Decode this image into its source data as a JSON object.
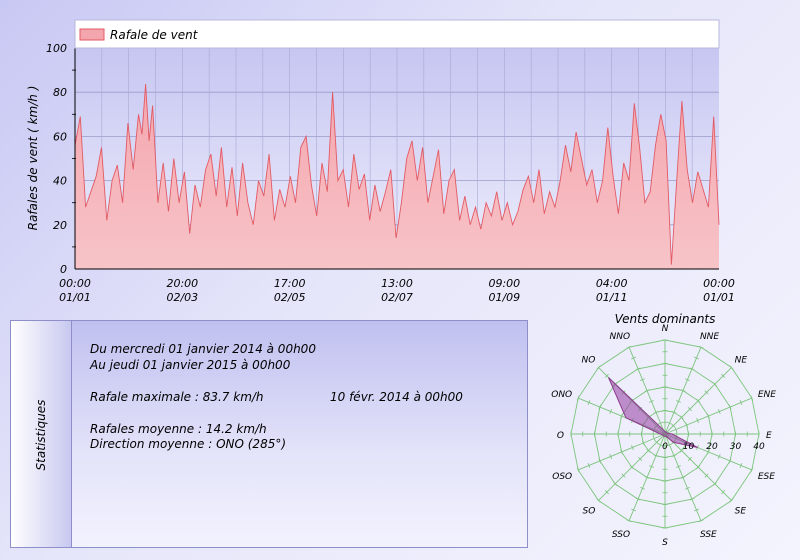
{
  "chart_data": [
    {
      "type": "area",
      "legend": "Rafale de vent",
      "ylabel": "Rafales de vent ( km/h )",
      "ylim": [
        0,
        100
      ],
      "yticks": [
        0,
        20,
        40,
        60,
        80,
        100
      ],
      "x_ticks": [
        {
          "time": "00:00",
          "date": "01/01"
        },
        {
          "time": "20:00",
          "date": "02/03"
        },
        {
          "time": "17:00",
          "date": "02/05"
        },
        {
          "time": "13:00",
          "date": "02/07"
        },
        {
          "time": "09:00",
          "date": "01/09"
        },
        {
          "time": "04:00",
          "date": "01/11"
        },
        {
          "time": "00:00",
          "date": "01/01"
        }
      ],
      "x_start": "2014-01-01 00:00",
      "x_end": "2015-01-01 00:00",
      "series": [
        {
          "name": "Rafale de vent",
          "color": "#f08080",
          "values": [
            {
              "x": "2014-01-01",
              "y": 56
            },
            {
              "x": "2014-01-04",
              "y": 69
            },
            {
              "x": "2014-01-07",
              "y": 28
            },
            {
              "x": "2014-01-10",
              "y": 35
            },
            {
              "x": "2014-01-13",
              "y": 42
            },
            {
              "x": "2014-01-16",
              "y": 55
            },
            {
              "x": "2014-01-19",
              "y": 22
            },
            {
              "x": "2014-01-22",
              "y": 40
            },
            {
              "x": "2014-01-25",
              "y": 47
            },
            {
              "x": "2014-01-28",
              "y": 30
            },
            {
              "x": "2014-01-31",
              "y": 66
            },
            {
              "x": "2014-02-03",
              "y": 45
            },
            {
              "x": "2014-02-06",
              "y": 70
            },
            {
              "x": "2014-02-08",
              "y": 61
            },
            {
              "x": "2014-02-10",
              "y": 83.7
            },
            {
              "x": "2014-02-12",
              "y": 58
            },
            {
              "x": "2014-02-14",
              "y": 74
            },
            {
              "x": "2014-02-17",
              "y": 30
            },
            {
              "x": "2014-02-20",
              "y": 48
            },
            {
              "x": "2014-02-23",
              "y": 26
            },
            {
              "x": "2014-02-26",
              "y": 50
            },
            {
              "x": "2014-03-01",
              "y": 30
            },
            {
              "x": "2014-03-04",
              "y": 44
            },
            {
              "x": "2014-03-07",
              "y": 16
            },
            {
              "x": "2014-03-10",
              "y": 38
            },
            {
              "x": "2014-03-13",
              "y": 28
            },
            {
              "x": "2014-03-16",
              "y": 45
            },
            {
              "x": "2014-03-19",
              "y": 52
            },
            {
              "x": "2014-03-22",
              "y": 33
            },
            {
              "x": "2014-03-25",
              "y": 55
            },
            {
              "x": "2014-03-28",
              "y": 28
            },
            {
              "x": "2014-03-31",
              "y": 46
            },
            {
              "x": "2014-04-03",
              "y": 24
            },
            {
              "x": "2014-04-06",
              "y": 48
            },
            {
              "x": "2014-04-09",
              "y": 30
            },
            {
              "x": "2014-04-12",
              "y": 20
            },
            {
              "x": "2014-04-15",
              "y": 40
            },
            {
              "x": "2014-04-18",
              "y": 33
            },
            {
              "x": "2014-04-21",
              "y": 52
            },
            {
              "x": "2014-04-24",
              "y": 22
            },
            {
              "x": "2014-04-27",
              "y": 36
            },
            {
              "x": "2014-04-30",
              "y": 28
            },
            {
              "x": "2014-05-03",
              "y": 42
            },
            {
              "x": "2014-05-06",
              "y": 30
            },
            {
              "x": "2014-05-09",
              "y": 55
            },
            {
              "x": "2014-05-12",
              "y": 60
            },
            {
              "x": "2014-05-15",
              "y": 38
            },
            {
              "x": "2014-05-18",
              "y": 24
            },
            {
              "x": "2014-05-21",
              "y": 48
            },
            {
              "x": "2014-05-24",
              "y": 35
            },
            {
              "x": "2014-05-27",
              "y": 80
            },
            {
              "x": "2014-05-30",
              "y": 40
            },
            {
              "x": "2014-06-02",
              "y": 45
            },
            {
              "x": "2014-06-05",
              "y": 28
            },
            {
              "x": "2014-06-08",
              "y": 52
            },
            {
              "x": "2014-06-11",
              "y": 36
            },
            {
              "x": "2014-06-14",
              "y": 43
            },
            {
              "x": "2014-06-17",
              "y": 22
            },
            {
              "x": "2014-06-20",
              "y": 38
            },
            {
              "x": "2014-06-23",
              "y": 26
            },
            {
              "x": "2014-06-26",
              "y": 35
            },
            {
              "x": "2014-06-29",
              "y": 45
            },
            {
              "x": "2014-07-02",
              "y": 14
            },
            {
              "x": "2014-07-05",
              "y": 30
            },
            {
              "x": "2014-07-08",
              "y": 50
            },
            {
              "x": "2014-07-11",
              "y": 58
            },
            {
              "x": "2014-07-14",
              "y": 40
            },
            {
              "x": "2014-07-17",
              "y": 55
            },
            {
              "x": "2014-07-20",
              "y": 30
            },
            {
              "x": "2014-07-23",
              "y": 42
            },
            {
              "x": "2014-07-26",
              "y": 54
            },
            {
              "x": "2014-07-29",
              "y": 25
            },
            {
              "x": "2014-08-01",
              "y": 40
            },
            {
              "x": "2014-08-04",
              "y": 45
            },
            {
              "x": "2014-08-07",
              "y": 22
            },
            {
              "x": "2014-08-10",
              "y": 33
            },
            {
              "x": "2014-08-13",
              "y": 20
            },
            {
              "x": "2014-08-16",
              "y": 28
            },
            {
              "x": "2014-08-19",
              "y": 18
            },
            {
              "x": "2014-08-22",
              "y": 30
            },
            {
              "x": "2014-08-25",
              "y": 24
            },
            {
              "x": "2014-08-28",
              "y": 35
            },
            {
              "x": "2014-08-31",
              "y": 22
            },
            {
              "x": "2014-09-03",
              "y": 30
            },
            {
              "x": "2014-09-06",
              "y": 20
            },
            {
              "x": "2014-09-09",
              "y": 26
            },
            {
              "x": "2014-09-12",
              "y": 36
            },
            {
              "x": "2014-09-15",
              "y": 42
            },
            {
              "x": "2014-09-18",
              "y": 30
            },
            {
              "x": "2014-09-21",
              "y": 45
            },
            {
              "x": "2014-09-24",
              "y": 25
            },
            {
              "x": "2014-09-27",
              "y": 35
            },
            {
              "x": "2014-09-30",
              "y": 28
            },
            {
              "x": "2014-10-03",
              "y": 40
            },
            {
              "x": "2014-10-06",
              "y": 56
            },
            {
              "x": "2014-10-09",
              "y": 44
            },
            {
              "x": "2014-10-12",
              "y": 62
            },
            {
              "x": "2014-10-15",
              "y": 50
            },
            {
              "x": "2014-10-18",
              "y": 38
            },
            {
              "x": "2014-10-21",
              "y": 45
            },
            {
              "x": "2014-10-24",
              "y": 30
            },
            {
              "x": "2014-10-27",
              "y": 40
            },
            {
              "x": "2014-10-30",
              "y": 64
            },
            {
              "x": "2014-11-02",
              "y": 42
            },
            {
              "x": "2014-11-05",
              "y": 25
            },
            {
              "x": "2014-11-08",
              "y": 48
            },
            {
              "x": "2014-11-11",
              "y": 40
            },
            {
              "x": "2014-11-14",
              "y": 75
            },
            {
              "x": "2014-11-17",
              "y": 55
            },
            {
              "x": "2014-11-20",
              "y": 30
            },
            {
              "x": "2014-11-23",
              "y": 35
            },
            {
              "x": "2014-11-26",
              "y": 56
            },
            {
              "x": "2014-11-29",
              "y": 70
            },
            {
              "x": "2014-12-02",
              "y": 58
            },
            {
              "x": "2014-12-05",
              "y": 2
            },
            {
              "x": "2014-12-08",
              "y": 40
            },
            {
              "x": "2014-12-11",
              "y": 76
            },
            {
              "x": "2014-12-14",
              "y": 45
            },
            {
              "x": "2014-12-17",
              "y": 30
            },
            {
              "x": "2014-12-20",
              "y": 44
            },
            {
              "x": "2014-12-23",
              "y": 36
            },
            {
              "x": "2014-12-26",
              "y": 28
            },
            {
              "x": "2014-12-29",
              "y": 69
            },
            {
              "x": "2015-01-01",
              "y": 20
            }
          ]
        }
      ]
    },
    {
      "type": "radar",
      "title": "Vents dominants",
      "directions": [
        "N",
        "NNE",
        "NE",
        "ENE",
        "E",
        "ESE",
        "SE",
        "SSE",
        "S",
        "SSO",
        "SO",
        "OSO",
        "O",
        "ONO",
        "NO",
        "NNO"
      ],
      "radial_ticks": [
        0,
        10,
        20,
        30,
        40
      ],
      "rmax": 40,
      "series": [
        {
          "name": "",
          "color": "#8c3c8c",
          "values": [
            1,
            1,
            1,
            1,
            3,
            15,
            5,
            1,
            1,
            1,
            1,
            1,
            2,
            18,
            34,
            2
          ]
        }
      ]
    }
  ],
  "stats": {
    "label": "Statistiques",
    "period_from": "Du mercredi 01 janvier 2014 à 00h00",
    "period_to": "Au jeudi 01 janvier 2015 à 00h00",
    "max_gust": "Rafale maximale : 83.7 km/h",
    "max_gust_date": "10 févr. 2014 à 00h00",
    "mean_gust": "Rafales moyenne : 14.2 km/h",
    "mean_direction": "Direction moyenne : ONO (285°)"
  }
}
